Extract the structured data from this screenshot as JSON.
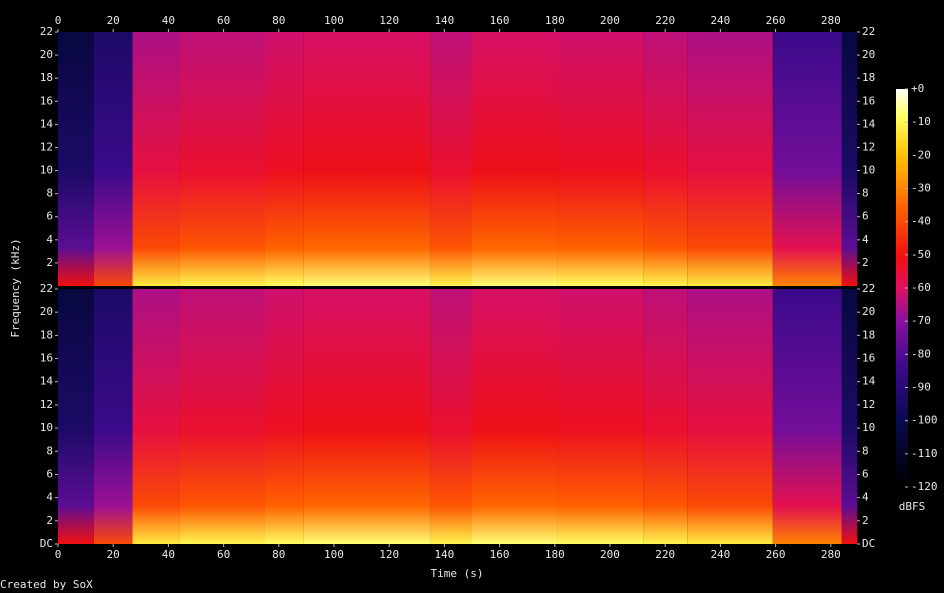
{
  "chart_data": {
    "type": "spectrogram",
    "xlabel": "Time (s)",
    "ylabel": "Frequency (kHz)",
    "colorbar_label": "dBFS",
    "credit": "Created by SoX",
    "xlim": [
      0,
      289.5
    ],
    "xticks": [
      0,
      20,
      40,
      60,
      80,
      100,
      120,
      140,
      160,
      180,
      200,
      220,
      240,
      260,
      280
    ],
    "ylim": [
      0,
      22
    ],
    "channels": [
      {
        "yticks": [
          2,
          4,
          6,
          8,
          10,
          12,
          14,
          16,
          18,
          20,
          22
        ]
      },
      {
        "yticks": [
          {
            "value": 0,
            "label": "DC"
          },
          2,
          4,
          6,
          8,
          10,
          12,
          14,
          16,
          18,
          20,
          22
        ]
      }
    ],
    "time_bins": [
      0,
      13,
      27,
      44,
      75,
      89,
      135,
      150,
      181,
      212,
      228,
      259,
      284,
      289.5
    ],
    "levels": [
      -100,
      -90,
      -62,
      -60,
      -58,
      -57,
      -60,
      -57,
      -58,
      -60,
      -62,
      -80,
      -100
    ],
    "clim": [
      -120,
      0
    ],
    "cticks": [
      {
        "value": 0,
        "label": "+0"
      },
      -10,
      -20,
      -30,
      -40,
      -50,
      -60,
      -70,
      -80,
      -90,
      -100,
      -110,
      -120
    ]
  }
}
